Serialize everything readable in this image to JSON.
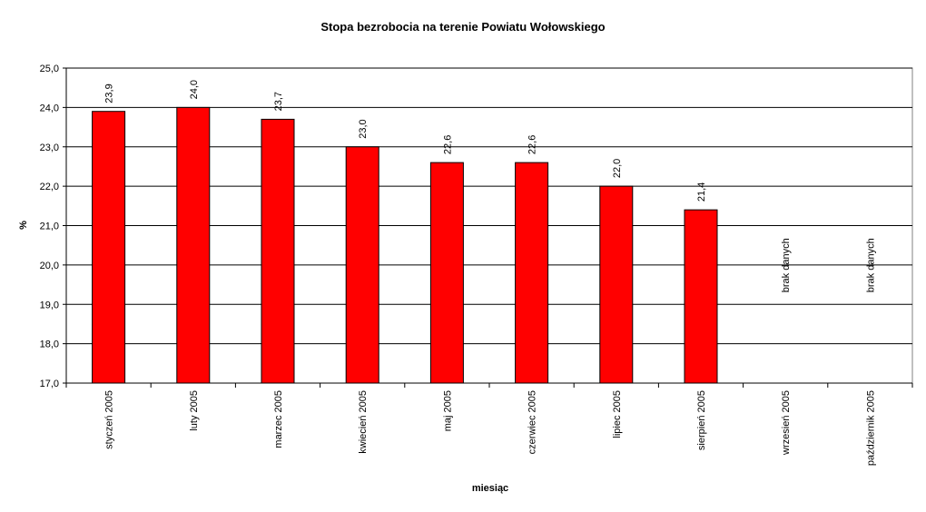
{
  "chart_data": {
    "type": "bar",
    "title": "Stopa bezrobocia na terenie Powiatu Wołowskiego",
    "x_label": "miesiąc",
    "y_label": "%",
    "categories": [
      "styczeń 2005",
      "luty 2005",
      "marzec 2005",
      "kwiecień 2005",
      "maj 2005",
      "czerwiec 2005",
      "lipiec 2005",
      "sierpień 2005",
      "wrzesień 2005",
      "październik 2005"
    ],
    "values": [
      23.9,
      24.0,
      23.7,
      23.0,
      22.6,
      22.6,
      22.0,
      21.4,
      null,
      null
    ],
    "value_labels": [
      "23,9",
      "24,0",
      "23,7",
      "23,0",
      "22,6",
      "22,6",
      "22,0",
      "21,4",
      "brak danych",
      "brak danych"
    ],
    "color": "#ff0000",
    "ylim": [
      17,
      25
    ],
    "yticks": [
      {
        "value": 17,
        "label": "17,0"
      },
      {
        "value": 18,
        "label": "18,0"
      },
      {
        "value": 19,
        "label": "19,0"
      },
      {
        "value": 20,
        "label": "20,0"
      },
      {
        "value": 21,
        "label": "21,0"
      },
      {
        "value": 22,
        "label": "22,0"
      },
      {
        "value": 23,
        "label": "23,0"
      },
      {
        "value": 24,
        "label": "24,0"
      },
      {
        "value": 25,
        "label": "25,0"
      }
    ],
    "grid": true
  }
}
